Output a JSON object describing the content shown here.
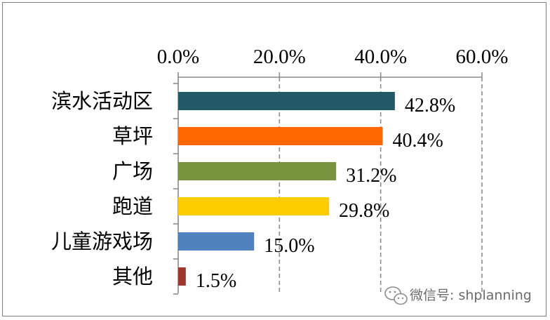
{
  "chart_data": {
    "type": "bar",
    "orientation": "horizontal",
    "categories": [
      "滨水活动区",
      "草坪",
      "广场",
      "跑道",
      "儿童游戏场",
      "其他"
    ],
    "values": [
      42.8,
      40.4,
      31.2,
      29.8,
      15.0,
      1.5
    ],
    "value_labels": [
      "42.8%",
      "40.4%",
      "31.2%",
      "29.8%",
      "15.0%",
      "1.5%"
    ],
    "bar_colors": [
      "#215968",
      "#ff6600",
      "#77933c",
      "#ffcc00",
      "#4f81bd",
      "#a0372f"
    ],
    "xlim": [
      0,
      60
    ],
    "xticks": [
      0,
      20,
      40,
      60
    ],
    "xtick_labels": [
      "0.0%",
      "20.0%",
      "40.0%",
      "60.0%"
    ],
    "x_axis_position": "top",
    "grid": "vertical-dashed",
    "legend": "none",
    "title": "",
    "xlabel": "",
    "ylabel": ""
  },
  "watermark": {
    "text": "微信号: shplanning",
    "icon": "wechat-icon"
  }
}
